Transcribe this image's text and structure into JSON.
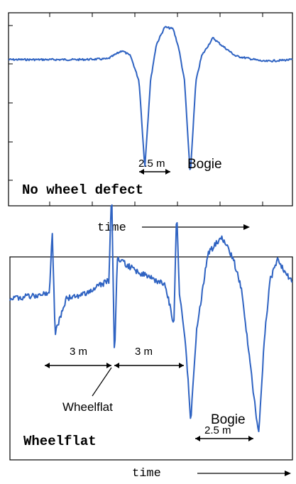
{
  "colors": {
    "signal": "#2f63c2",
    "axis": "#000000",
    "annotation": "#000000",
    "background": "#ffffff"
  },
  "chart_data": [
    {
      "type": "line",
      "title": "No wheel defect",
      "xlabel": "time",
      "ylabel": "",
      "grid": false,
      "legend": "none",
      "annotations": [
        {
          "id": "span",
          "text": "2.5 m"
        },
        {
          "id": "bogie",
          "text": "Bogie"
        }
      ],
      "series": [
        {
          "x": [
            0,
            0.25,
            0.35,
            0.4,
            0.43,
            0.46,
            0.48,
            0.5,
            0.52,
            0.55,
            0.58,
            0.6,
            0.62,
            0.64,
            0.66,
            0.68,
            0.72,
            0.75,
            0.8,
            0.9,
            1.0
          ],
          "y": [
            0,
            0.0,
            0.02,
            0.25,
            0.1,
            -0.6,
            -3.0,
            -0.6,
            0.4,
            0.9,
            0.85,
            0.3,
            -0.6,
            -3.2,
            -0.6,
            0.1,
            0.6,
            0.4,
            0.1,
            -0.05,
            0
          ]
        }
      ]
    },
    {
      "type": "line",
      "title": "Wheelflat",
      "xlabel": "time",
      "ylabel": "",
      "grid": false,
      "legend": "none",
      "annotations": [
        {
          "id": "dist1",
          "text": "3 m"
        },
        {
          "id": "dist2",
          "text": "3 m"
        },
        {
          "id": "flat",
          "text": "Wheelflat"
        },
        {
          "id": "bogie",
          "text": "Bogie"
        },
        {
          "id": "span",
          "text": "2.5 m"
        }
      ],
      "series": [
        {
          "x": [
            0,
            0.1,
            0.14,
            0.15,
            0.16,
            0.2,
            0.25,
            0.35,
            0.36,
            0.37,
            0.38,
            0.45,
            0.55,
            0.58,
            0.59,
            0.6,
            0.62,
            0.64,
            0.66,
            0.7,
            0.75,
            0.79,
            0.82,
            0.85,
            0.88,
            0.9,
            0.92,
            0.95,
            0.97,
            1.0
          ],
          "y": [
            0,
            0.05,
            0.15,
            1.5,
            -0.8,
            0.0,
            0.05,
            0.4,
            2.5,
            -1.4,
            0.9,
            0.6,
            0.3,
            -0.6,
            2.0,
            0.1,
            -0.9,
            -2.8,
            -0.8,
            1.0,
            1.4,
            0.9,
            0.2,
            -1.5,
            -3.1,
            -1.0,
            0.4,
            0.9,
            0.6,
            0.4
          ]
        }
      ]
    }
  ]
}
